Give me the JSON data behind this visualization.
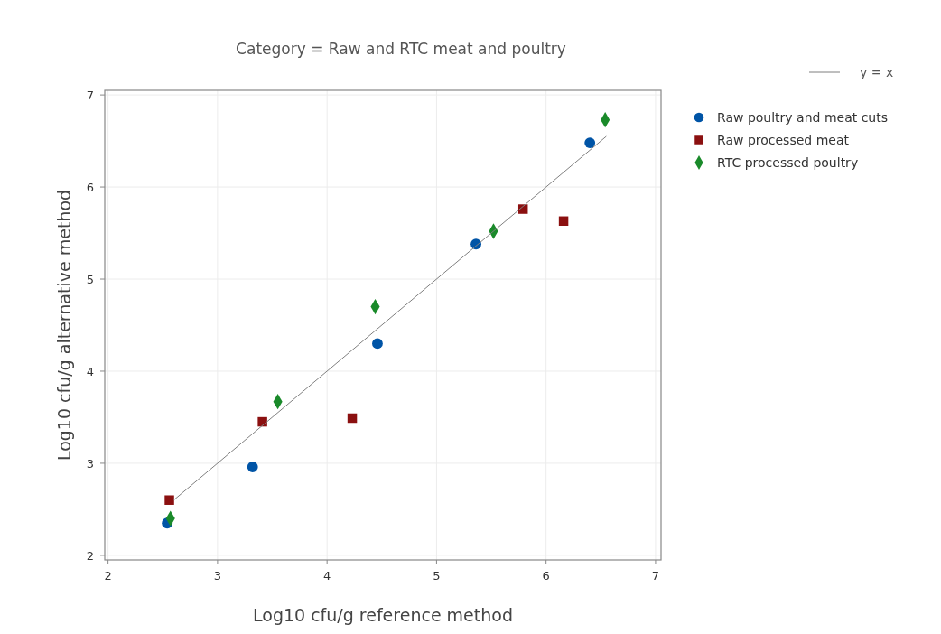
{
  "chart_data": {
    "type": "scatter",
    "title": "Category = Raw and RTC meat and poultry",
    "xlabel": "Log10 cfu/g reference method",
    "ylabel": "Log10 cfu/g alternative method",
    "xlim": [
      1.97,
      7.05
    ],
    "ylim": [
      1.95,
      7.05
    ],
    "xticks": [
      2,
      3,
      4,
      5,
      6,
      7
    ],
    "yticks": [
      2,
      3,
      4,
      5,
      6,
      7
    ],
    "grid": true,
    "legend": "right",
    "series": [
      {
        "name": "y = x",
        "type": "line",
        "color": "#7f7f7f",
        "x": [
          2.6,
          6.55
        ],
        "values": [
          2.6,
          6.55
        ]
      },
      {
        "name": "Raw poultry and meat cuts",
        "color": "#0054a6",
        "marker": "circle",
        "x": [
          2.54,
          3.32,
          4.46,
          5.36,
          6.4
        ],
        "values": [
          2.35,
          2.96,
          4.3,
          5.38,
          6.48
        ]
      },
      {
        "name": "Raw processed meat",
        "color": "#8b1010",
        "marker": "square",
        "x": [
          2.56,
          3.41,
          4.23,
          5.79,
          6.16
        ],
        "values": [
          2.6,
          3.45,
          3.49,
          5.76,
          5.63
        ]
      },
      {
        "name": "RTC processed poultry",
        "color": "#1a8a2a",
        "marker": "diamond",
        "x": [
          2.57,
          3.55,
          4.44,
          5.52,
          6.54
        ],
        "values": [
          2.4,
          3.67,
          4.7,
          5.52,
          6.73
        ]
      }
    ]
  }
}
